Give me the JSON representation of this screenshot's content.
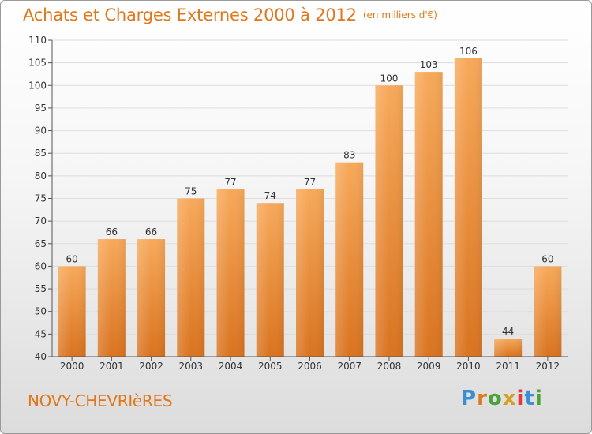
{
  "header": {
    "title": "Achats et Charges Externes 2000 à 2012",
    "unit": "(en milliers d'€)"
  },
  "footer": {
    "town": "NOVY-CHEVRIèRES",
    "logo_letters": [
      "P",
      "r",
      "o",
      "x",
      "i",
      "t",
      "i"
    ],
    "logo_colors": [
      "#3a8fd4",
      "#e0771b",
      "#4aa23a",
      "#d4a020",
      "#e03a3a",
      "#3a8fd4",
      "#4aa23a"
    ]
  },
  "colors": {
    "title": "#e0771b",
    "bar_top": "#f7a95a",
    "bar_bottom": "#d9731f",
    "axis": "#555555",
    "grid": "#dddddd"
  },
  "chart_data": {
    "type": "bar",
    "title": "Achats et Charges Externes 2000 à 2012",
    "subtitle": "(en milliers d'€)",
    "categories": [
      "2000",
      "2001",
      "2002",
      "2003",
      "2004",
      "2005",
      "2006",
      "2007",
      "2008",
      "2009",
      "2010",
      "2011",
      "2012"
    ],
    "values": [
      60,
      66,
      66,
      75,
      77,
      74,
      77,
      83,
      100,
      103,
      106,
      44,
      60
    ],
    "ylim": [
      40,
      110
    ],
    "yticks": [
      40,
      45,
      50,
      55,
      60,
      65,
      70,
      75,
      80,
      85,
      90,
      95,
      100,
      105,
      110
    ],
    "grid": true,
    "xlabel": "",
    "ylabel": ""
  }
}
